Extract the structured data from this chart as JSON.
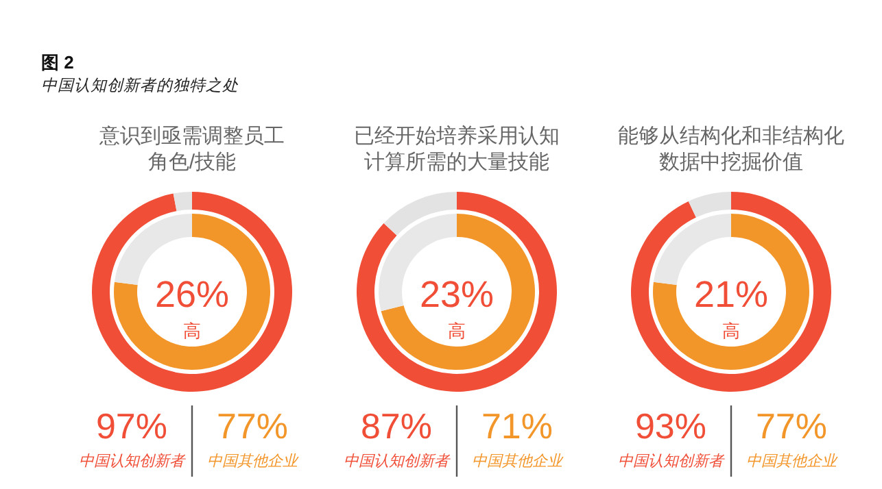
{
  "chart_data": [
    {
      "type": "donut",
      "title": "图 2",
      "subtitle": "中国认知创新者的独特之处",
      "annotations": [
        "意识到亟需调整员工",
        "角色/技能",
        "26%",
        "高"
      ],
      "categories": [
        null,
        null
      ],
      "data_labels": true,
      "series": [
        {
          "name": "中国其他企业",
          "color": "#f3962a",
          "colors": [
            "#f3962a",
            "#e8e8e8"
          ],
          "values": [
            77,
            23
          ],
          "value_labels": [
            "77%",
            null
          ]
        },
        {
          "name": "中国认知创新者",
          "color": "#f04e37",
          "colors": [
            "#f04e37",
            "#e3e3e3"
          ],
          "values": [
            97,
            3
          ],
          "value_labels": [
            "97%",
            null
          ]
        }
      ]
    },
    {
      "type": "donut",
      "annotations": [
        "已经开始培养采用认知",
        "计算所需的大量技能",
        "23%",
        "高"
      ],
      "categories": [
        null,
        null
      ],
      "data_labels": true,
      "series": [
        {
          "name": "中国其他企业",
          "color": "#f3962a",
          "colors": [
            "#f3962a",
            "#e8e8e8"
          ],
          "values": [
            71,
            29
          ],
          "value_labels": [
            "71%",
            null
          ]
        },
        {
          "name": "中国认知创新者",
          "color": "#f04e37",
          "colors": [
            "#f04e37",
            "#e3e3e3"
          ],
          "values": [
            87,
            13
          ],
          "value_labels": [
            "87%",
            null
          ]
        }
      ]
    },
    {
      "type": "donut",
      "annotations": [
        "能够从结构化和非结构化",
        "数据中挖掘价值",
        "21%",
        "高"
      ],
      "categories": [
        null,
        null
      ],
      "data_labels": true,
      "series": [
        {
          "name": "中国其他企业",
          "color": "#f3962a",
          "colors": [
            "#f3962a",
            "#e8e8e8"
          ],
          "values": [
            77,
            23
          ],
          "value_labels": [
            "77%",
            null
          ]
        },
        {
          "name": "中国认知创新者",
          "color": "#f04e37",
          "colors": [
            "#f04e37",
            "#e3e3e3"
          ],
          "values": [
            93,
            7
          ],
          "value_labels": [
            "93%",
            null
          ]
        }
      ]
    }
  ]
}
